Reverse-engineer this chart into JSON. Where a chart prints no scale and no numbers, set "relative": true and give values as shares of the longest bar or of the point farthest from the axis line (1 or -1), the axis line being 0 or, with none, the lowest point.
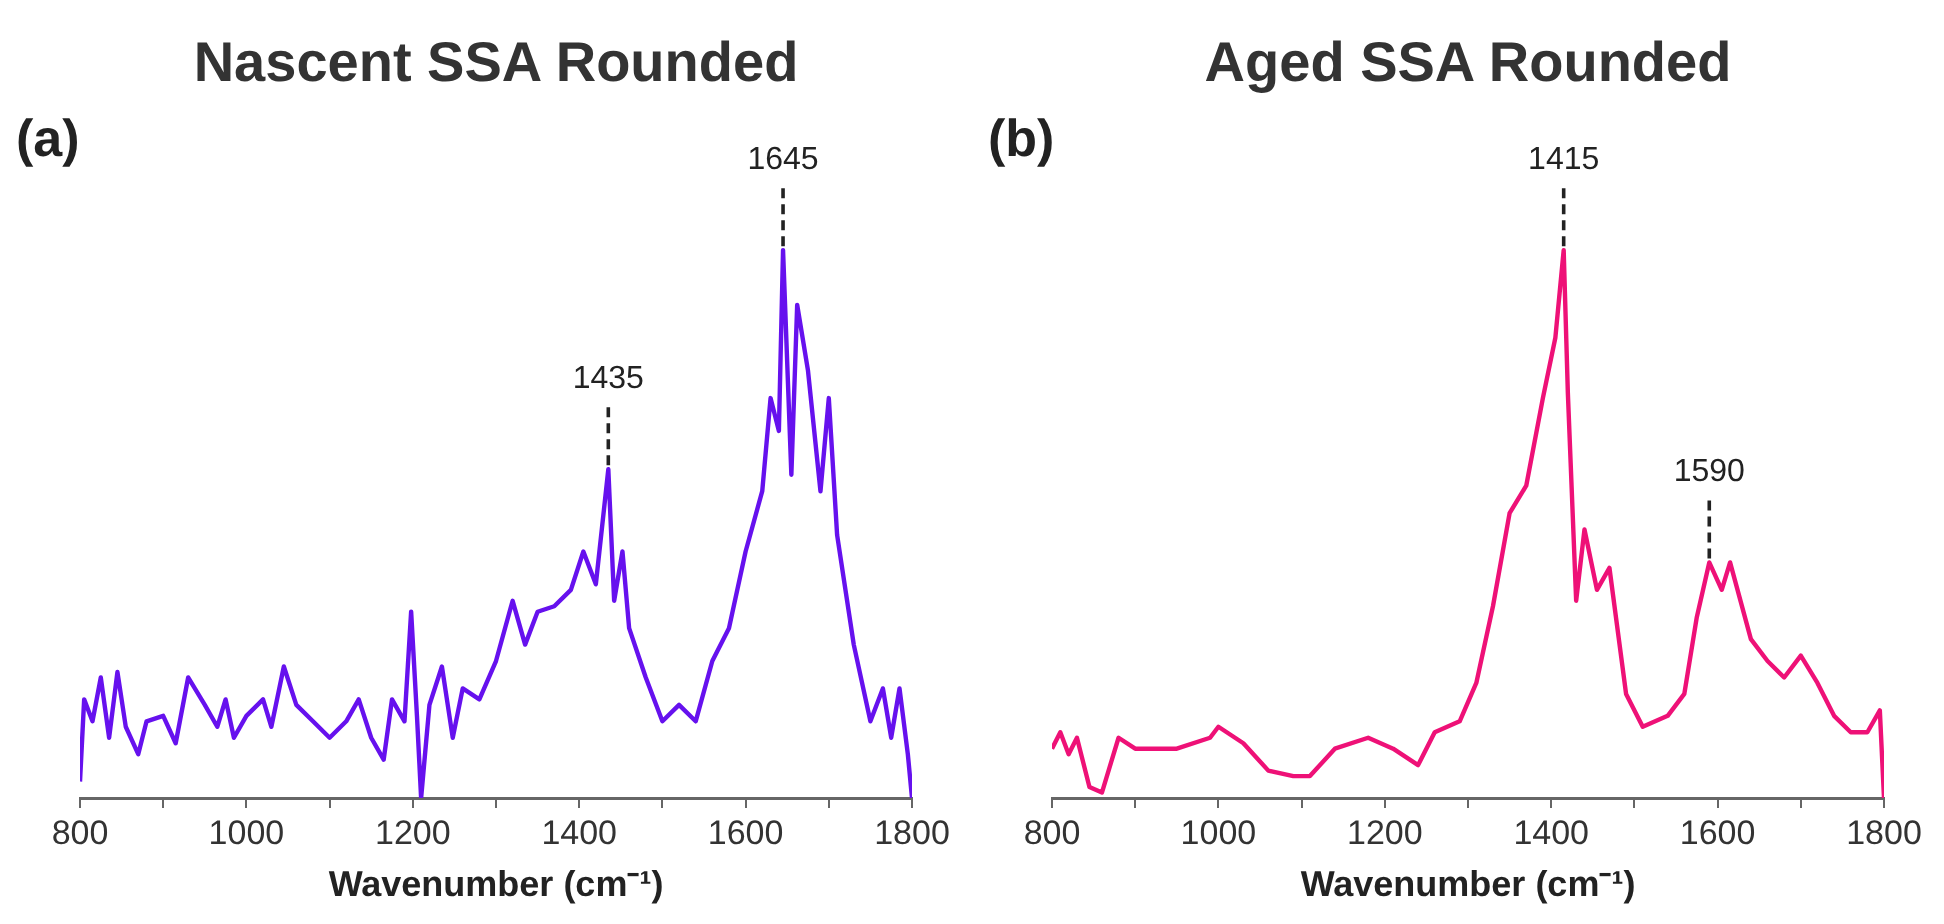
{
  "chart_data": [
    {
      "type": "line",
      "title": "Nascent SSA Rounded",
      "xlabel": "Wavenumber (cm⁻¹)",
      "relative": true,
      "grid": false,
      "legend": false,
      "marker": "none",
      "line_style": "solid",
      "annotations": [
        "(a)",
        {
          "text": "1435",
          "x": 1435,
          "y": 0.6
        },
        {
          "text": "1645",
          "x": 1645,
          "y": 1
        }
      ],
      "xlim": [
        800,
        1800
      ],
      "xticks": [
        800,
        {
          "value": 900,
          "label": null
        },
        1000,
        {
          "value": 1100,
          "label": null
        },
        1200,
        {
          "value": 1300,
          "label": null
        },
        1400,
        {
          "value": 1500,
          "label": null
        },
        1600,
        {
          "value": 1700,
          "label": null
        },
        1800
      ],
      "series": [
        {
          "color": "#6611ee",
          "x": [
            800,
            805,
            815,
            825,
            835,
            845,
            855,
            870,
            880,
            900,
            915,
            930,
            950,
            965,
            975,
            985,
            1000,
            1020,
            1030,
            1045,
            1060,
            1080,
            1100,
            1120,
            1135,
            1150,
            1165,
            1175,
            1190,
            1198,
            1205,
            1210,
            1220,
            1235,
            1248,
            1260,
            1280,
            1300,
            1320,
            1335,
            1350,
            1370,
            1390,
            1405,
            1420,
            1435,
            1442,
            1452,
            1460,
            1480,
            1500,
            1520,
            1540,
            1560,
            1580,
            1600,
            1620,
            1630,
            1640,
            1645,
            1655,
            1662,
            1675,
            1690,
            1700,
            1710,
            1730,
            1750,
            1765,
            1775,
            1785,
            1795,
            1800
          ],
          "values": [
            0.03,
            0.18,
            0.14,
            0.22,
            0.11,
            0.23,
            0.13,
            0.08,
            0.14,
            0.15,
            0.1,
            0.22,
            0.17,
            0.13,
            0.18,
            0.11,
            0.15,
            0.18,
            0.13,
            0.24,
            0.17,
            0.14,
            0.11,
            0.14,
            0.18,
            0.11,
            0.07,
            0.18,
            0.14,
            0.34,
            0.15,
            0,
            0.17,
            0.24,
            0.11,
            0.2,
            0.18,
            0.25,
            0.36,
            0.28,
            0.34,
            0.35,
            0.38,
            0.45,
            0.39,
            0.6,
            0.36,
            0.45,
            0.31,
            0.22,
            0.14,
            0.17,
            0.14,
            0.25,
            0.31,
            0.45,
            0.56,
            0.73,
            0.67,
            1,
            0.59,
            0.9,
            0.78,
            0.56,
            0.73,
            0.48,
            0.28,
            0.14,
            0.2,
            0.11,
            0.2,
            0.08,
            0
          ]
        }
      ]
    },
    {
      "type": "line",
      "title": "Aged SSA Rounded",
      "xlabel": "Wavenumber (cm⁻¹)",
      "relative": true,
      "grid": false,
      "legend": false,
      "marker": "none",
      "line_style": "solid",
      "annotations": [
        "(b)",
        {
          "text": "1415",
          "x": 1415,
          "y": 1
        },
        {
          "text": "1590",
          "x": 1590,
          "y": 0.43
        }
      ],
      "xlim": [
        800,
        1800
      ],
      "xticks": [
        800,
        {
          "value": 900,
          "label": null
        },
        1000,
        {
          "value": 1100,
          "label": null
        },
        1200,
        {
          "value": 1300,
          "label": null
        },
        1400,
        {
          "value": 1500,
          "label": null
        },
        1600,
        {
          "value": 1700,
          "label": null
        },
        1800
      ],
      "series": [
        {
          "color": "#ee1177",
          "x": [
            800,
            810,
            820,
            830,
            845,
            860,
            880,
            900,
            950,
            990,
            1000,
            1030,
            1060,
            1090,
            1110,
            1140,
            1180,
            1210,
            1240,
            1260,
            1290,
            1310,
            1330,
            1350,
            1370,
            1390,
            1405,
            1415,
            1420,
            1430,
            1440,
            1455,
            1470,
            1490,
            1510,
            1540,
            1560,
            1575,
            1590,
            1605,
            1615,
            1640,
            1660,
            1680,
            1700,
            1720,
            1740,
            1760,
            1780,
            1795,
            1800
          ],
          "values": [
            0.09,
            0.12,
            0.08,
            0.11,
            0.02,
            0.01,
            0.11,
            0.09,
            0.09,
            0.11,
            0.13,
            0.1,
            0.05,
            0.04,
            0.04,
            0.09,
            0.11,
            0.09,
            0.06,
            0.12,
            0.14,
            0.21,
            0.35,
            0.52,
            0.57,
            0.73,
            0.84,
            1,
            0.74,
            0.36,
            0.49,
            0.38,
            0.42,
            0.19,
            0.13,
            0.15,
            0.19,
            0.33,
            0.43,
            0.38,
            0.43,
            0.29,
            0.25,
            0.22,
            0.26,
            0.21,
            0.15,
            0.12,
            0.12,
            0.16,
            0
          ]
        }
      ]
    }
  ]
}
